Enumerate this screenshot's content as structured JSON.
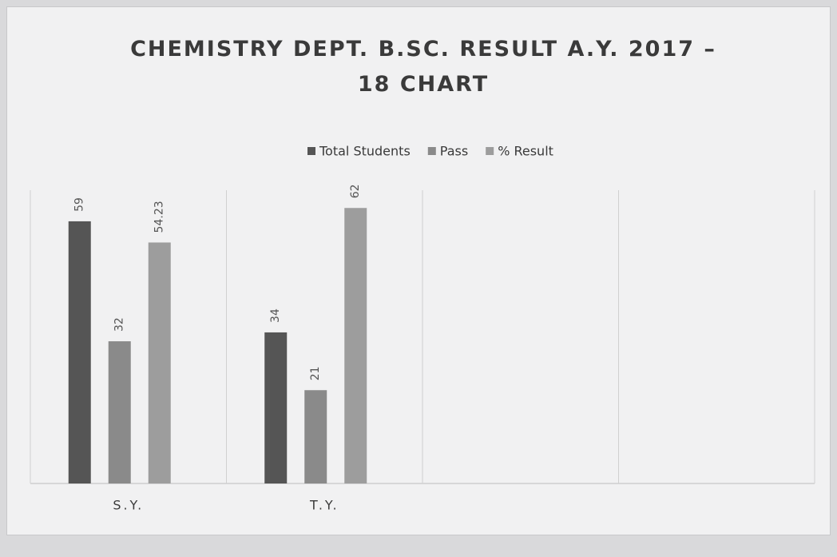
{
  "chart_data": {
    "type": "bar",
    "title": "CHEMISTRY DEPT. B.SC. RESULT A.Y. 2017 – 18 CHART",
    "categories": [
      "S.Y.",
      "T.Y.",
      null,
      null
    ],
    "series": [
      {
        "name": "Total Students",
        "color": "#555555",
        "values": [
          59,
          34,
          null,
          null
        ]
      },
      {
        "name": "Pass",
        "color": "#8a8a8a",
        "values": [
          32,
          21,
          null,
          null
        ]
      },
      {
        "name": "% Result",
        "color": "#9d9d9d",
        "values": [
          54.23,
          62,
          null,
          null
        ]
      }
    ],
    "ylim": [
      0,
      66
    ],
    "legend": "top"
  }
}
